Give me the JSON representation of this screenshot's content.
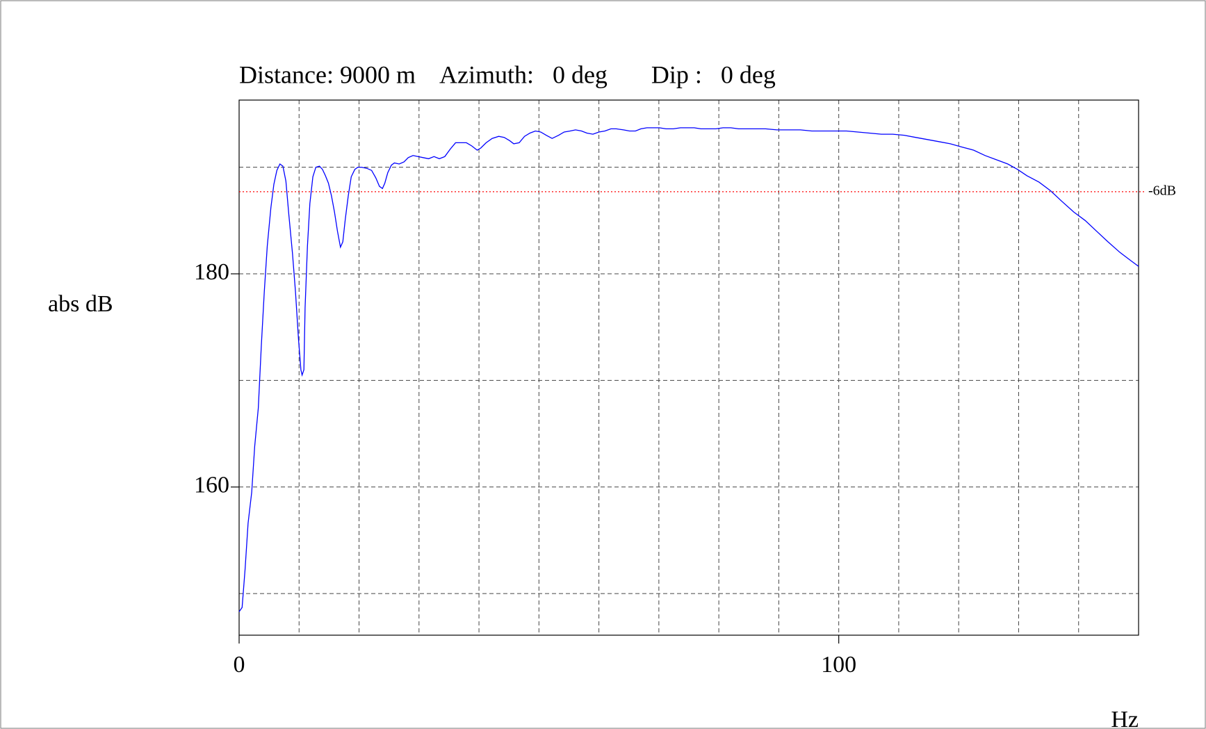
{
  "chart_data": {
    "type": "line",
    "title": "Distance: 9000 m    Azimuth:   0 deg       Dip :   0 deg",
    "x_label": "Hz",
    "y_label": "abs dB",
    "xlim": [
      0,
      150
    ],
    "ylim": [
      146.1,
      196.3
    ],
    "xticks": [
      0,
      100
    ],
    "yticks": [
      160,
      180
    ],
    "x_grid": [
      10,
      20,
      30,
      40,
      50,
      60,
      70,
      80,
      90,
      100,
      110,
      120,
      130,
      140
    ],
    "y_grid": [
      150,
      160,
      170,
      180,
      190
    ],
    "grid": true,
    "reference_line": {
      "value": 187.7,
      "label": "-6dB",
      "color": "#ff0000"
    },
    "x": [
      0,
      0.5,
      1.0,
      1.5,
      2.1,
      2.6,
      3.2,
      3.7,
      4.2,
      4.7,
      5.3,
      5.8,
      6.3,
      6.8,
      7.3,
      7.8,
      8.3,
      8.9,
      9.4,
      9.9,
      10.3,
      10.5,
      10.8,
      11.0,
      11.4,
      11.8,
      12.3,
      12.8,
      13.4,
      13.9,
      14.4,
      14.9,
      15.4,
      15.9,
      16.4,
      16.9,
      17.3,
      17.7,
      18.2,
      18.7,
      19.3,
      19.8,
      20.4,
      21.3,
      22.1,
      22.8,
      23.4,
      23.9,
      24.3,
      24.8,
      25.4,
      25.9,
      26.7,
      27.5,
      28.2,
      29.0,
      29.8,
      30.7,
      31.6,
      32.5,
      33.4,
      34.3,
      35.2,
      36.1,
      37.0,
      37.9,
      38.8,
      39.7,
      40.3,
      41.2,
      42.2,
      43.3,
      44.2,
      45.1,
      45.8,
      46.7,
      47.6,
      48.5,
      49.4,
      50.3,
      51.2,
      52.2,
      53.3,
      54.2,
      55.2,
      56.1,
      57.1,
      58.0,
      59.0,
      60.0,
      61.0,
      62.0,
      62.9,
      64.1,
      65.1,
      66.1,
      67.0,
      68.0,
      69.1,
      70.1,
      71.2,
      72.4,
      73.6,
      74.7,
      75.9,
      77.0,
      78.2,
      79.5,
      80.7,
      82.0,
      83.3,
      84.6,
      85.9,
      87.8,
      89.7,
      91.7,
      93.6,
      95.5,
      97.4,
      99.4,
      101.3,
      103.2,
      105.1,
      107.1,
      109.0,
      110.9,
      112.8,
      114.8,
      116.7,
      118.6,
      120.5,
      122.5,
      124.4,
      126.3,
      128.2,
      129.8,
      131.4,
      133.4,
      135.3,
      137.2,
      139.2,
      141.1,
      143.0,
      144.9,
      146.9,
      148.8,
      150
    ],
    "series": [
      {
        "color": "#0000ff",
        "values": [
          148.3,
          148.7,
          152.3,
          156.6,
          159.5,
          163.8,
          167.4,
          173.2,
          178.3,
          182.6,
          186.2,
          188.4,
          189.7,
          190.3,
          190.1,
          188.7,
          185.5,
          181.9,
          178.3,
          173.9,
          171.0,
          170.5,
          171.0,
          176.8,
          182.6,
          186.6,
          189.1,
          190.0,
          190.1,
          189.8,
          189.2,
          188.5,
          187.3,
          185.8,
          184.0,
          182.5,
          183.0,
          185.1,
          187.3,
          189.1,
          189.8,
          190.0,
          190.0,
          189.9,
          189.7,
          189.0,
          188.2,
          188.0,
          188.5,
          189.5,
          190.2,
          190.4,
          190.3,
          190.5,
          190.9,
          191.1,
          191.0,
          190.9,
          190.8,
          191.0,
          190.8,
          191.0,
          191.7,
          192.3,
          192.3,
          192.3,
          192.0,
          191.6,
          191.8,
          192.3,
          192.7,
          192.9,
          192.8,
          192.5,
          192.2,
          192.3,
          192.9,
          193.2,
          193.4,
          193.3,
          193.0,
          192.7,
          193.0,
          193.3,
          193.4,
          193.5,
          193.4,
          193.2,
          193.1,
          193.3,
          193.4,
          193.6,
          193.6,
          193.5,
          193.4,
          193.4,
          193.6,
          193.7,
          193.7,
          193.7,
          193.6,
          193.6,
          193.7,
          193.7,
          193.7,
          193.6,
          193.6,
          193.6,
          193.7,
          193.7,
          193.6,
          193.6,
          193.6,
          193.6,
          193.5,
          193.5,
          193.5,
          193.4,
          193.4,
          193.4,
          193.4,
          193.3,
          193.2,
          193.1,
          193.1,
          193.0,
          192.8,
          192.6,
          192.4,
          192.2,
          191.9,
          191.6,
          191.1,
          190.7,
          190.3,
          189.8,
          189.2,
          188.6,
          187.8,
          186.8,
          185.8,
          185.0,
          184.0,
          183.0,
          182.0,
          181.2,
          180.7
        ]
      }
    ]
  }
}
